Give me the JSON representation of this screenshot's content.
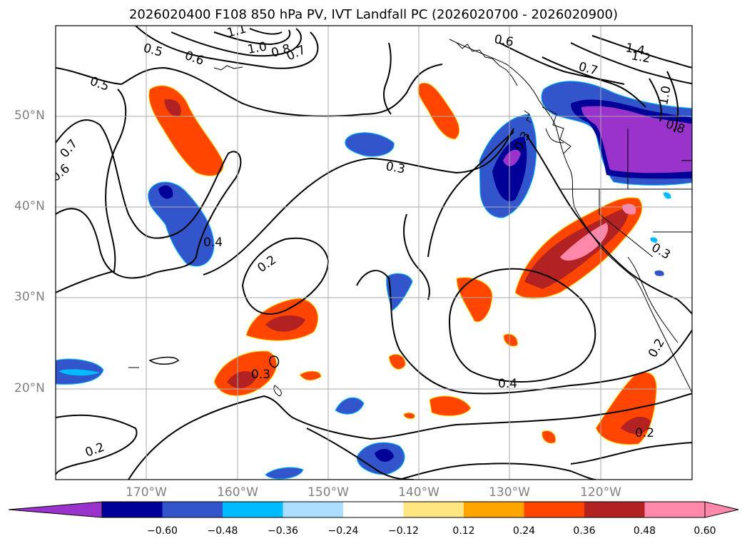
{
  "title": "2026020400 F108 850 hPa PV, IVT Landfall PC (2026020700 - 2026020900)",
  "lat_labels": [
    "50°N",
    "40°N",
    "30°N",
    "20°N"
  ],
  "lon_labels": [
    "170°W",
    "160°W",
    "150°W",
    "140°W",
    "130°W",
    "120°W"
  ],
  "contour_labels": [
    "0.5",
    "0.6",
    "1.1",
    "1.0",
    "0.8",
    "0.7",
    "0.5",
    "0.7",
    "0.6",
    "0.3",
    "0.4",
    "0.2",
    "0.3",
    "0.6",
    "1.4",
    "1.2",
    "0.7",
    "1.0",
    "0.8",
    "0.4",
    "0.3",
    "0.3",
    "0.4",
    "0.2",
    "0.2",
    "0.2"
  ],
  "colorbar": {
    "ticks": [
      "−0.60",
      "−0.48",
      "−0.36",
      "−0.24",
      "−0.12",
      "0.12",
      "0.24",
      "0.36",
      "0.48",
      "0.60"
    ],
    "colors": [
      "#9933cc",
      "#000099",
      "#3355cc",
      "#00bbff",
      "#aaddff",
      "#ffffff",
      "#ffe680",
      "#ffa500",
      "#ff4500",
      "#b22222",
      "#ff88aa",
      "#ff88aa"
    ]
  },
  "colors": {
    "grid": "#aaaaaa",
    "contour": "#000000",
    "label": "#808080"
  }
}
